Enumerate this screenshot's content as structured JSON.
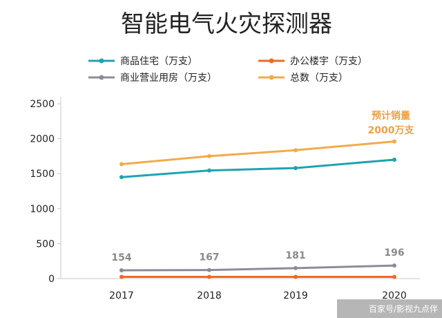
{
  "chart_data": {
    "type": "line",
    "title": "智能电气火灾探测器",
    "categories": [
      "2017",
      "2018",
      "2019",
      "2020"
    ],
    "ylim": [
      0,
      2500
    ],
    "yticks": [
      0,
      500,
      1000,
      1500,
      2000,
      2500
    ],
    "grid": false,
    "legend_position": "top",
    "series": [
      {
        "name": "商品住宅（万支）",
        "color": "#1fa3b0",
        "values": [
          1450,
          1545,
          1580,
          1700
        ]
      },
      {
        "name": "办公楼宇（万支）",
        "color": "#ef6b21",
        "values": [
          25,
          25,
          25,
          25
        ]
      },
      {
        "name": "商业营业用房（万支）",
        "color": "#8c8c99",
        "values": [
          119,
          122,
          150,
          186
        ]
      },
      {
        "name": "总数（万支）",
        "color": "#f2ab4a",
        "values": [
          1635,
          1750,
          1835,
          1960
        ]
      }
    ],
    "data_labels": [
      "154",
      "167",
      "181",
      "196"
    ],
    "annotation": [
      "预计销量",
      "2000万支"
    ]
  },
  "watermark": "百家号/影视九点伴"
}
